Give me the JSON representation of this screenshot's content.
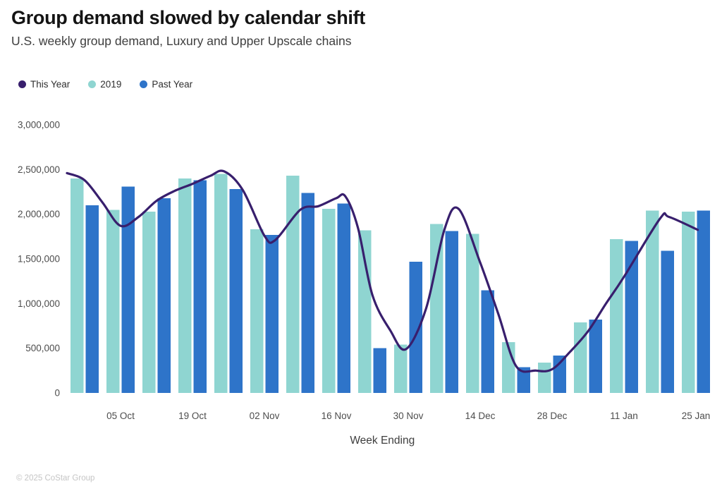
{
  "chart_data": {
    "type": "bar+line",
    "title": "Group demand slowed by calendar shift",
    "subtitle": "U.S. weekly group demand, Luxury and Upper Upscale chains",
    "xlabel": "Week Ending",
    "footer": "© 2025 CoStar Group",
    "grid": false,
    "legend_position": "top-left",
    "weeks_count": 18,
    "y_axis": {
      "min": 0,
      "max": 3000000,
      "ticks": [
        {
          "value": 0,
          "label": "0"
        },
        {
          "value": 500000,
          "label": "500,000"
        },
        {
          "value": 1000000,
          "label": "1,000,000"
        },
        {
          "value": 1500000,
          "label": "1,500,000"
        },
        {
          "value": 2000000,
          "label": "2,000,000"
        },
        {
          "value": 2500000,
          "label": "2,500,000"
        },
        {
          "value": 3000000,
          "label": "3,000,000"
        }
      ]
    },
    "x_axis": {
      "ticks": [
        {
          "week": 1,
          "label": "05 Oct"
        },
        {
          "week": 3,
          "label": "19 Oct"
        },
        {
          "week": 5,
          "label": "02 Nov"
        },
        {
          "week": 7,
          "label": "16 Nov"
        },
        {
          "week": 9,
          "label": "30 Nov"
        },
        {
          "week": 11,
          "label": "14 Dec"
        },
        {
          "week": 13,
          "label": "28 Dec"
        },
        {
          "week": 15,
          "label": "11 Jan"
        },
        {
          "week": 17,
          "label": "25 Jan"
        }
      ]
    },
    "series": [
      {
        "name": "This Year",
        "type": "line",
        "color": "#381f6d",
        "points": [
          [
            -0.49,
            2460000
          ],
          [
            0,
            2380000
          ],
          [
            0.5,
            2130000
          ],
          [
            1,
            1870000
          ],
          [
            1.5,
            1970000
          ],
          [
            2,
            2150000
          ],
          [
            2.5,
            2260000
          ],
          [
            3,
            2340000
          ],
          [
            3.5,
            2430000
          ],
          [
            3.88,
            2480000
          ],
          [
            4.4,
            2270000
          ],
          [
            5,
            1760000
          ],
          [
            5.3,
            1710000
          ],
          [
            6,
            2050000
          ],
          [
            6.5,
            2090000
          ],
          [
            7,
            2180000
          ],
          [
            7.25,
            2200000
          ],
          [
            7.6,
            1850000
          ],
          [
            8,
            1100000
          ],
          [
            8.5,
            700000
          ],
          [
            8.94,
            490000
          ],
          [
            9.5,
            950000
          ],
          [
            10,
            1820000
          ],
          [
            10.4,
            2060000
          ],
          [
            11,
            1460000
          ],
          [
            11.5,
            890000
          ],
          [
            12,
            300000
          ],
          [
            12.55,
            250000
          ],
          [
            13,
            265000
          ],
          [
            13.5,
            460000
          ],
          [
            14,
            690000
          ],
          [
            14.5,
            1000000
          ],
          [
            15,
            1300000
          ],
          [
            16,
            1950000
          ],
          [
            16.25,
            1970000
          ],
          [
            17.05,
            1825000
          ]
        ]
      },
      {
        "name": "2019",
        "type": "bar",
        "color": "#8fd5d1",
        "values": [
          2400000,
          2050000,
          2030000,
          2400000,
          2450000,
          1830000,
          2430000,
          2060000,
          1820000,
          540000,
          1890000,
          1780000,
          570000,
          340000,
          790000,
          1720000,
          2040000,
          2030000
        ]
      },
      {
        "name": "Past Year",
        "type": "bar",
        "color": "#2e74c9",
        "values": [
          2100000,
          2310000,
          2180000,
          2380000,
          2280000,
          1770000,
          2240000,
          2120000,
          500000,
          1470000,
          1810000,
          1150000,
          290000,
          420000,
          820000,
          1700000,
          1590000,
          2040000
        ]
      }
    ]
  }
}
